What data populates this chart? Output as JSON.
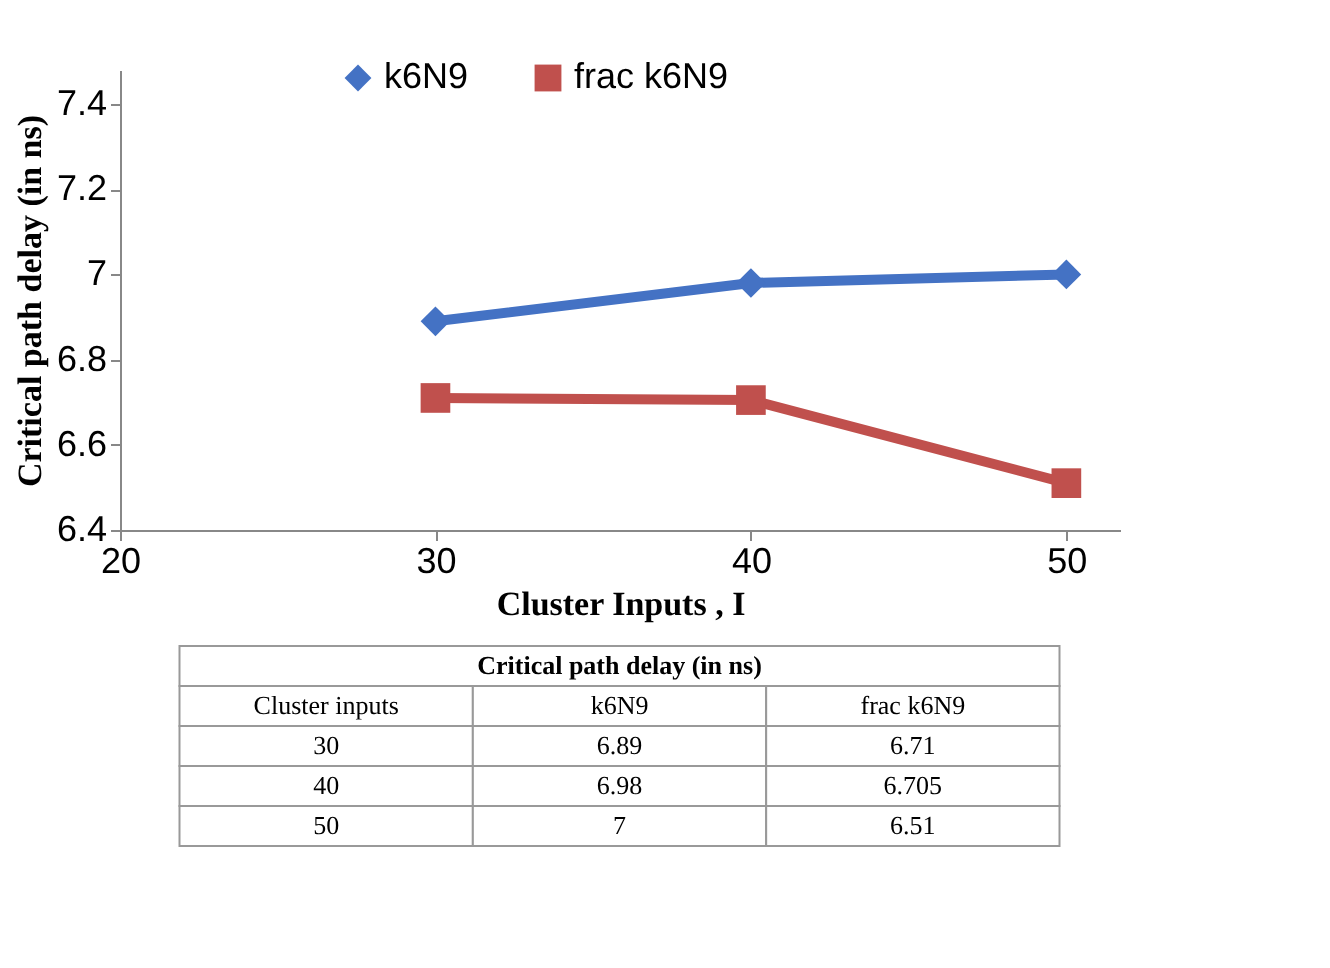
{
  "chart_data": [
    {
      "type": "line",
      "xlabel": "Cluster Inputs , I",
      "ylabel": "Critical path delay (in ns)",
      "x": [
        30,
        40,
        50
      ],
      "series": [
        {
          "name": "k6N9",
          "color": "#4472c4",
          "marker": "diamond",
          "line_style": "solid",
          "values": [
            6.89,
            6.98,
            7
          ]
        },
        {
          "name": "frac k6N9",
          "color": "#c0504d",
          "marker": "square",
          "line_style": "solid",
          "values": [
            6.71,
            6.705,
            6.51
          ]
        }
      ],
      "xlim": [
        20,
        51.7
      ],
      "xticks": [
        20,
        30,
        40,
        50
      ],
      "ylim": [
        6.4,
        7.48
      ],
      "yticks": [
        6.4,
        6.6,
        6.8,
        {
          "value": 7,
          "label": "7"
        },
        7.2,
        7.4
      ],
      "grid": false,
      "legend": "top"
    },
    {
      "type": "other",
      "title": "Critical path delay (in ns)",
      "xlabel": "Cluster inputs",
      "categories": [
        "30",
        "40",
        "50"
      ],
      "series": [
        {
          "name": "k6N9",
          "values": [
            6.89,
            6.98,
            7
          ],
          "value_labels": [
            "6.89",
            "6.98",
            "7"
          ]
        },
        {
          "name": "frac k6N9",
          "values": [
            6.71,
            6.705,
            6.51
          ],
          "value_labels": [
            "6.71",
            "6.705",
            "6.51"
          ]
        }
      ],
      "data_labels": true
    }
  ]
}
